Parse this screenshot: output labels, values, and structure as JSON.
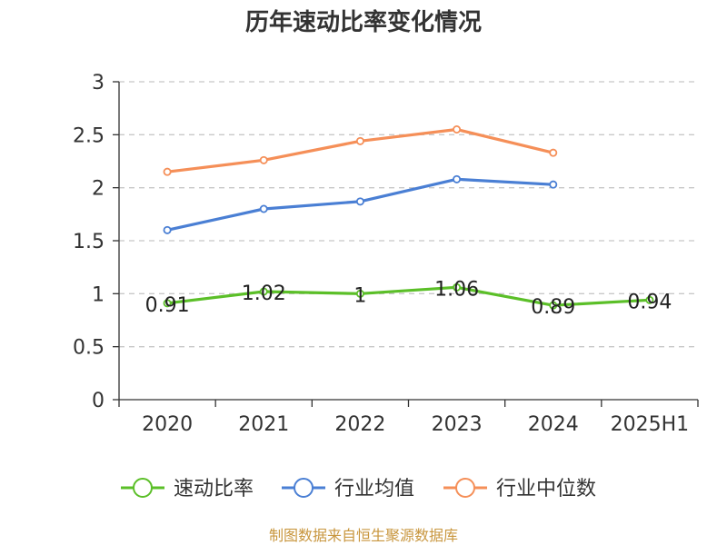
{
  "chart_data": {
    "type": "line",
    "title": "历年速动比率变化情况",
    "categories": [
      "2020",
      "2021",
      "2022",
      "2023",
      "2024",
      "2025H1"
    ],
    "ylim": [
      0,
      3
    ],
    "yticks": [
      "0",
      "0.5",
      "1",
      "1.5",
      "2",
      "2.5",
      "3"
    ],
    "grid": true,
    "legend_position": "bottom",
    "series": [
      {
        "name": "速动比率",
        "color": "#5bbf28",
        "values": [
          0.91,
          1.02,
          1.0,
          1.06,
          0.89,
          0.94
        ],
        "labels": [
          "0.91",
          "1.02",
          "1",
          "1.06",
          "0.89",
          "0.94"
        ]
      },
      {
        "name": "行业均值",
        "color": "#4a7fd4",
        "values": [
          1.6,
          1.8,
          1.87,
          2.08,
          2.03,
          null
        ]
      },
      {
        "name": "行业中位数",
        "color": "#f58f58",
        "values": [
          2.15,
          2.26,
          2.44,
          2.55,
          2.33,
          null
        ]
      }
    ]
  },
  "source_text": "制图数据来自恒生聚源数据库"
}
